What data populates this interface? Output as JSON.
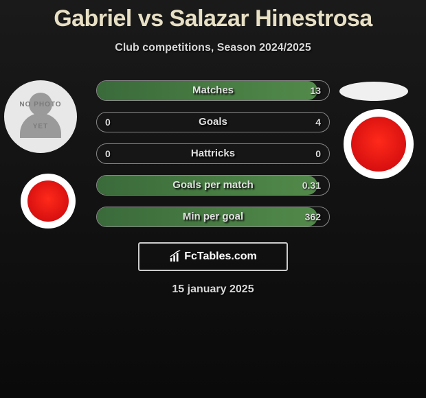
{
  "title": "Gabriel vs Salazar Hinestrosa",
  "subtitle": "Club competitions, Season 2024/2025",
  "brand": "FcTables.com",
  "date": "15 january 2025",
  "colors": {
    "title": "#e8e0c5",
    "bar_fill_start": "#3a6a3a",
    "bar_fill_end": "#528a4a",
    "border": "#888888",
    "crest_red": "#d81010"
  },
  "left_player": {
    "has_photo": false,
    "placeholder_line1": "NO PHOTO",
    "placeholder_line2": "YET"
  },
  "rows": [
    {
      "label": "Matches",
      "left": "",
      "right": "13",
      "fill_pct": 95
    },
    {
      "label": "Goals",
      "left": "0",
      "right": "4",
      "fill_pct": 0
    },
    {
      "label": "Hattricks",
      "left": "0",
      "right": "0",
      "fill_pct": 0
    },
    {
      "label": "Goals per match",
      "left": "",
      "right": "0.31",
      "fill_pct": 95
    },
    {
      "label": "Min per goal",
      "left": "",
      "right": "362",
      "fill_pct": 95
    }
  ]
}
